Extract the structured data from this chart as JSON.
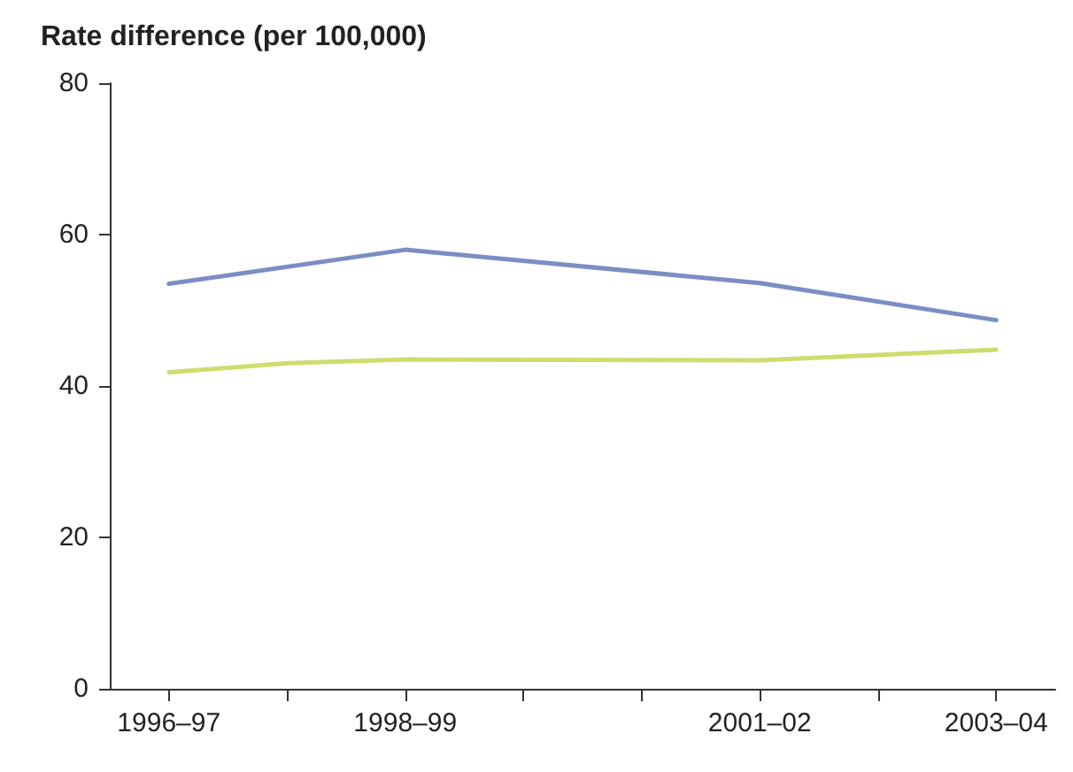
{
  "chart_data": {
    "type": "line",
    "title": "Rate difference (per 100,000)",
    "categories": [
      "1996–97",
      null,
      "1998–99",
      null,
      null,
      "2001–02",
      null,
      "2003–04"
    ],
    "series": [
      {
        "color": "#7b8dc4",
        "values": [
          53.5,
          null,
          58,
          null,
          null,
          53.6,
          null,
          48.7
        ]
      },
      {
        "color": "#cfdc6e",
        "values": [
          41.8,
          43,
          43.5,
          null,
          null,
          43.4,
          null,
          44.8
        ]
      }
    ],
    "ylim": [
      0,
      80
    ],
    "yticks": [
      0,
      20,
      40,
      60,
      80
    ],
    "grid": false,
    "marker": "none",
    "line_style": "solid"
  }
}
